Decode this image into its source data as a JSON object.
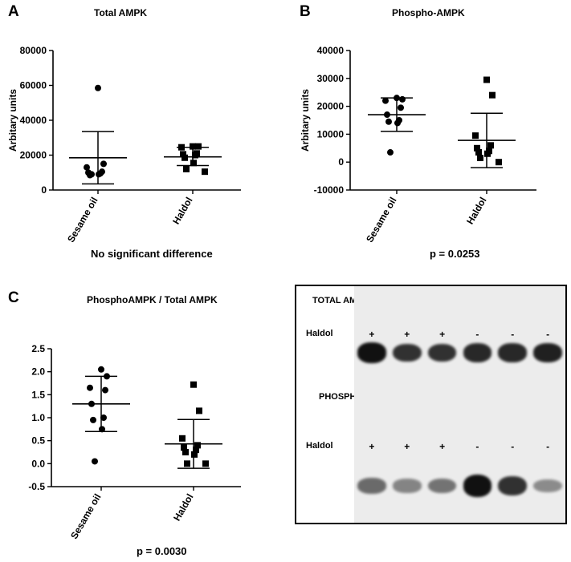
{
  "panels": [
    {
      "letter": "A",
      "title": "Total AMPK",
      "note": "No significant difference",
      "chart_data": {
        "type": "scatter",
        "title": "Total AMPK",
        "ylabel": "Arbitary units",
        "ylim": [
          0,
          80000
        ],
        "yticks": [
          0,
          20000,
          40000,
          60000,
          80000
        ],
        "categories": [
          "Sesame oil",
          "Haldol"
        ],
        "series": [
          {
            "name": "Sesame oil",
            "marker": "circle",
            "values": [
              58500,
              15000,
              13000,
              10500,
              10000,
              9500,
              8500,
              9000,
              9000
            ],
            "mean": 18500,
            "sd_upper": 33500,
            "sd_lower": 3500
          },
          {
            "name": "Haldol",
            "marker": "square",
            "values": [
              25000,
              25000,
              24500,
              21000,
              20500,
              20000,
              18500,
              15500,
              12000,
              10500
            ],
            "mean": 19000,
            "sd_upper": 24500,
            "sd_lower": 14000
          }
        ]
      }
    },
    {
      "letter": "B",
      "title": "Phospho-AMPK",
      "note": "p = 0.0253",
      "chart_data": {
        "type": "scatter",
        "title": "Phospho-AMPK",
        "ylabel": "Arbitary units",
        "ylim": [
          -10000,
          40000
        ],
        "yticks": [
          -10000,
          0,
          10000,
          20000,
          30000,
          40000
        ],
        "categories": [
          "Sesame oil",
          "Haldol"
        ],
        "series": [
          {
            "name": "Sesame oil",
            "marker": "circle",
            "values": [
              23000,
              22500,
              22000,
              19500,
              17000,
              15000,
              14500,
              14000,
              3500
            ],
            "mean": 17000,
            "sd_upper": 23000,
            "sd_lower": 11000
          },
          {
            "name": "Haldol",
            "marker": "square",
            "values": [
              29500,
              24000,
              9500,
              6000,
              5000,
              4000,
              3500,
              3000,
              1500,
              0
            ],
            "mean": 7800,
            "sd_upper": 17500,
            "sd_lower": -2000
          }
        ]
      }
    },
    {
      "letter": "C",
      "title": "PhosphoAMPK / Total AMPK",
      "note": "p = 0.0030",
      "chart_data": {
        "type": "scatter",
        "title": "PhosphoAMPK / Total AMPK",
        "ylabel": "",
        "ylim": [
          -0.5,
          2.5
        ],
        "yticks": [
          "-0.5",
          "0.0",
          "0.5",
          "1.0",
          "1.5",
          "2.0",
          "2.5"
        ],
        "categories": [
          "Sesame oil",
          "Haldol"
        ],
        "series": [
          {
            "name": "Sesame oil",
            "marker": "circle",
            "values": [
              2.05,
              1.9,
              1.65,
              1.6,
              1.3,
              1.0,
              0.95,
              0.75,
              0.05
            ],
            "mean": 1.3,
            "sd_upper": 1.9,
            "sd_lower": 0.7
          },
          {
            "name": "Haldol",
            "marker": "square",
            "values": [
              1.72,
              1.15,
              0.55,
              0.4,
              0.35,
              0.3,
              0.25,
              0.2,
              0.0,
              0.0
            ],
            "mean": 0.43,
            "sd_upper": 0.96,
            "sd_lower": -0.1
          }
        ]
      }
    }
  ],
  "blot": {
    "total_label": "TOTAL AMPK",
    "phospho_label": "PHOSPHO-AMPK",
    "haldol_label": "Haldol",
    "lanes": [
      "+",
      "+",
      "+",
      "-",
      "-",
      "-"
    ],
    "total_band_intensity": [
      1.0,
      0.8,
      0.8,
      0.85,
      0.85,
      0.9
    ],
    "phospho_band_intensity": [
      0.45,
      0.3,
      0.4,
      1.0,
      0.8,
      0.25
    ],
    "colors": {
      "background": "#ececec",
      "band": "#111111"
    }
  }
}
